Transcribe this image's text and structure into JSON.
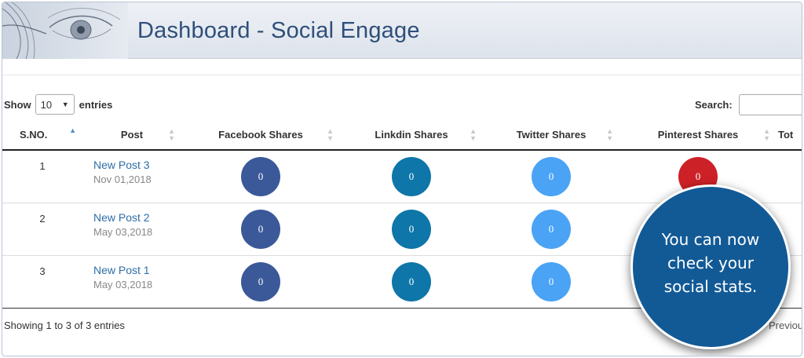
{
  "page": {
    "title": "Dashboard - Social Engage"
  },
  "length_menu": {
    "show_label": "Show",
    "selected": "10",
    "entries_label": "entries"
  },
  "search": {
    "label": "Search:",
    "value": ""
  },
  "table": {
    "columns": [
      "S.NO.",
      "Post",
      "Facebook Shares",
      "Linkdin Shares",
      "Twitter Shares",
      "Pinterest Shares",
      "Tot"
    ],
    "rows": [
      {
        "sno": "1",
        "post_title": "New Post 3",
        "post_date": "Nov 01,2018",
        "facebook": "0",
        "linkedin": "0",
        "twitter": "0",
        "pinterest": "0"
      },
      {
        "sno": "2",
        "post_title": "New Post 2",
        "post_date": "May 03,2018",
        "facebook": "0",
        "linkedin": "0",
        "twitter": "0",
        "pinterest": ""
      },
      {
        "sno": "3",
        "post_title": "New Post 1",
        "post_date": "May 03,2018",
        "facebook": "0",
        "linkedin": "0",
        "twitter": "0",
        "pinterest": ""
      }
    ]
  },
  "footer": {
    "info": "Showing 1 to 3 of 3 entries",
    "previous": "Previous"
  },
  "callout": {
    "text": "You can now check your social stats."
  },
  "colors": {
    "facebook": "#3b5998",
    "linkedin": "#0e76a8",
    "twitter": "#4aa3f5",
    "pinterest": "#cc2127",
    "title": "#2f4f7a",
    "callout": "#125a96"
  }
}
